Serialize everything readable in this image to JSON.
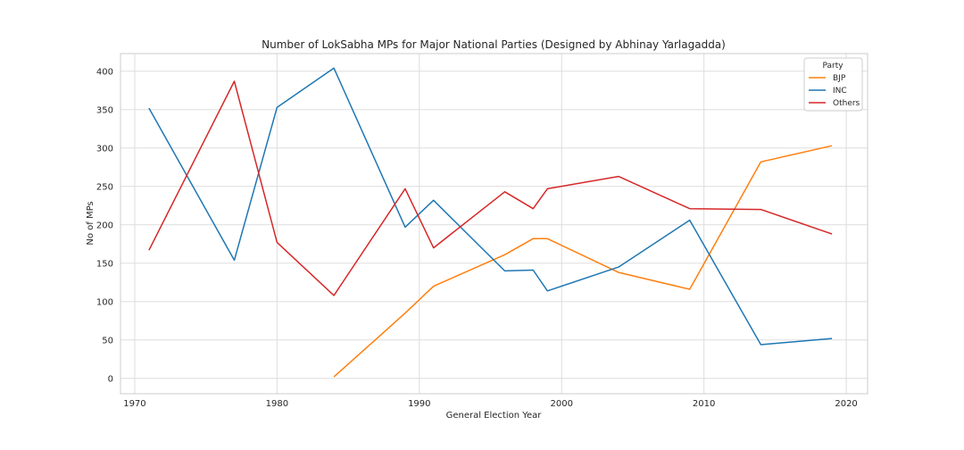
{
  "chart_data": {
    "type": "line",
    "title": "Number of LokSabha MPs for Major National Parties   (Designed by Abhinay Yarlagadda)",
    "xlabel": "General Election Year",
    "ylabel": "No of MPs",
    "xlim": [
      1969,
      2021.5
    ],
    "ylim": [
      -20,
      423
    ],
    "xticks": [
      1970,
      1980,
      1990,
      2000,
      2010,
      2020
    ],
    "yticks": [
      0,
      50,
      100,
      150,
      200,
      250,
      300,
      350,
      400
    ],
    "grid": true,
    "legend": {
      "title": "Party",
      "position": "top-right"
    },
    "series": [
      {
        "name": "BJP",
        "color": "#ff7f0e",
        "points": [
          [
            1984,
            2
          ],
          [
            1989,
            85
          ],
          [
            1991,
            120
          ],
          [
            1996,
            161
          ],
          [
            1998,
            182
          ],
          [
            1999,
            182
          ],
          [
            2004,
            138
          ],
          [
            2009,
            116
          ],
          [
            2014,
            282
          ],
          [
            2019,
            303
          ]
        ]
      },
      {
        "name": "INC",
        "color": "#1f77b4",
        "points": [
          [
            1971,
            352
          ],
          [
            1977,
            154
          ],
          [
            1980,
            353
          ],
          [
            1984,
            404
          ],
          [
            1989,
            197
          ],
          [
            1991,
            232
          ],
          [
            1996,
            140
          ],
          [
            1998,
            141
          ],
          [
            1999,
            114
          ],
          [
            2004,
            145
          ],
          [
            2009,
            206
          ],
          [
            2014,
            44
          ],
          [
            2019,
            52
          ]
        ]
      },
      {
        "name": "Others",
        "color": "#d62728",
        "points": [
          [
            1971,
            167
          ],
          [
            1977,
            387
          ],
          [
            1980,
            177
          ],
          [
            1984,
            108
          ],
          [
            1989,
            247
          ],
          [
            1991,
            170
          ],
          [
            1996,
            243
          ],
          [
            1998,
            221
          ],
          [
            1999,
            247
          ],
          [
            2004,
            263
          ],
          [
            2009,
            221
          ],
          [
            2014,
            220
          ],
          [
            2019,
            188
          ]
        ]
      }
    ]
  }
}
